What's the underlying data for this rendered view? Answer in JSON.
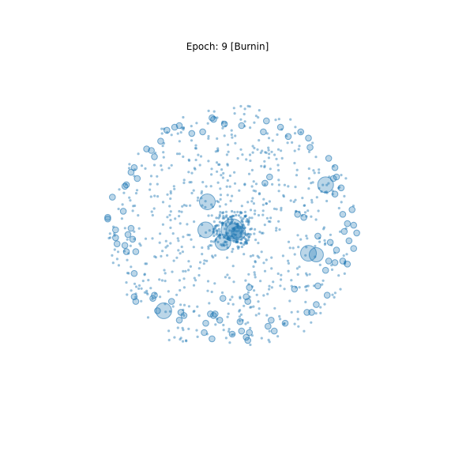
{
  "title": "Epoch: 9 [Burnin]",
  "point_color": "#1f77b4",
  "chart_data": {
    "type": "scatter",
    "title": "Epoch: 9 [Burnin]",
    "axes_visible": false,
    "grid": false,
    "legend": "none",
    "xlim": [
      -1,
      1
    ],
    "ylim": [
      -1,
      1
    ],
    "alpha": 0.3,
    "large_nodes": [
      {
        "x": 0.0,
        "y": 0.0,
        "r": 14
      },
      {
        "x": 0.01,
        "y": -0.01,
        "r": 10
      },
      {
        "x": 0.04,
        "y": -0.02,
        "r": 9
      },
      {
        "x": -0.17,
        "y": 0.0,
        "r": 10
      },
      {
        "x": -0.06,
        "y": -0.08,
        "r": 10
      },
      {
        "x": -0.16,
        "y": 0.18,
        "r": 10
      },
      {
        "x": 0.6,
        "y": 0.29,
        "r": 10
      },
      {
        "x": 0.49,
        "y": -0.15,
        "r": 10
      },
      {
        "x": 0.54,
        "y": -0.16,
        "r": 9
      },
      {
        "x": -0.44,
        "y": -0.52,
        "r": 10
      }
    ],
    "medium_nodes": [
      {
        "x": -0.12,
        "y": 0.71
      },
      {
        "x": 0.06,
        "y": 0.67
      },
      {
        "x": 0.22,
        "y": 0.7
      },
      {
        "x": 0.31,
        "y": 0.66
      },
      {
        "x": 0.44,
        "y": 0.63
      },
      {
        "x": 0.36,
        "y": 0.6
      },
      {
        "x": 0.49,
        "y": 0.59
      },
      {
        "x": 0.5,
        "y": 0.53
      },
      {
        "x": 0.62,
        "y": 0.46
      },
      {
        "x": 0.66,
        "y": 0.4
      },
      {
        "x": 0.67,
        "y": 0.34
      },
      {
        "x": 0.7,
        "y": 0.27
      },
      {
        "x": 0.66,
        "y": 0.23
      },
      {
        "x": 0.77,
        "y": 0.13
      },
      {
        "x": 0.71,
        "y": 0.1
      },
      {
        "x": 0.74,
        "y": 0.04
      },
      {
        "x": 0.78,
        "y": 0.03
      },
      {
        "x": 0.72,
        "y": -0.01
      },
      {
        "x": 0.8,
        "y": -0.02
      },
      {
        "x": 0.75,
        "y": -0.07
      },
      {
        "x": 0.78,
        "y": -0.12
      },
      {
        "x": 0.67,
        "y": -0.13
      },
      {
        "x": 0.63,
        "y": -0.08
      },
      {
        "x": 0.55,
        "y": -0.04
      },
      {
        "x": 0.62,
        "y": -0.2
      },
      {
        "x": 0.66,
        "y": -0.21
      },
      {
        "x": 0.6,
        "y": -0.26
      },
      {
        "x": 0.42,
        "y": 0.1
      },
      {
        "x": 0.46,
        "y": 0.08
      },
      {
        "x": 0.61,
        "y": -0.42
      },
      {
        "x": 0.54,
        "y": -0.48
      },
      {
        "x": 0.51,
        "y": -0.53
      },
      {
        "x": 0.48,
        "y": -0.53
      },
      {
        "x": 0.34,
        "y": -0.6
      },
      {
        "x": 0.25,
        "y": -0.58
      },
      {
        "x": 0.23,
        "y": -0.62
      },
      {
        "x": 0.27,
        "y": -0.65
      },
      {
        "x": 0.11,
        "y": -0.66
      },
      {
        "x": 0.09,
        "y": -0.69
      },
      {
        "x": 0.06,
        "y": -0.65
      },
      {
        "x": 0.1,
        "y": -0.71
      },
      {
        "x": 0.05,
        "y": -0.59
      },
      {
        "x": 0.1,
        "y": -0.46
      },
      {
        "x": 0.09,
        "y": -0.43
      },
      {
        "x": 0.0,
        "y": -0.67
      },
      {
        "x": -0.13,
        "y": -0.7
      },
      {
        "x": -0.18,
        "y": -0.66
      },
      {
        "x": -0.17,
        "y": -0.6
      },
      {
        "x": -0.12,
        "y": -0.55
      },
      {
        "x": -0.11,
        "y": -0.54
      },
      {
        "x": -0.08,
        "y": -0.58
      },
      {
        "x": -0.06,
        "y": -0.44
      },
      {
        "x": -0.34,
        "y": -0.58
      },
      {
        "x": -0.31,
        "y": -0.55
      },
      {
        "x": -0.33,
        "y": -0.53
      },
      {
        "x": -0.39,
        "y": -0.46
      },
      {
        "x": -0.5,
        "y": -0.42
      },
      {
        "x": -0.51,
        "y": -0.44
      },
      {
        "x": -0.48,
        "y": -0.52
      },
      {
        "x": -0.63,
        "y": -0.28
      },
      {
        "x": -0.68,
        "y": -0.14
      },
      {
        "x": -0.69,
        "y": -0.1
      },
      {
        "x": -0.62,
        "y": -0.14
      },
      {
        "x": -0.64,
        "y": -0.06
      },
      {
        "x": -0.74,
        "y": -0.09
      },
      {
        "x": -0.67,
        "y": -0.03
      },
      {
        "x": -0.75,
        "y": -0.05
      },
      {
        "x": -0.65,
        "y": 0.01
      },
      {
        "x": -0.75,
        "y": 0.0
      },
      {
        "x": -0.8,
        "y": 0.08
      },
      {
        "x": -0.7,
        "y": 0.12
      },
      {
        "x": -0.77,
        "y": 0.21
      },
      {
        "x": -0.68,
        "y": 0.29
      },
      {
        "x": -0.69,
        "y": 0.28
      },
      {
        "x": -0.61,
        "y": 0.33
      },
      {
        "x": -0.65,
        "y": 0.37
      },
      {
        "x": -0.5,
        "y": 0.47
      },
      {
        "x": -0.55,
        "y": 0.52
      },
      {
        "x": -0.52,
        "y": 0.51
      },
      {
        "x": -0.46,
        "y": 0.57
      },
      {
        "x": -0.42,
        "y": 0.64
      },
      {
        "x": -0.37,
        "y": 0.66
      },
      {
        "x": -0.34,
        "y": 0.67
      },
      {
        "x": -0.26,
        "y": 0.62
      },
      {
        "x": -0.19,
        "y": 0.63
      },
      {
        "x": -0.13,
        "y": 0.72
      },
      {
        "x": -0.05,
        "y": 0.68
      },
      {
        "x": 0.2,
        "y": 0.63
      },
      {
        "x": 0.21,
        "y": 0.3
      },
      {
        "x": 0.24,
        "y": 0.34
      },
      {
        "x": -0.62,
        "y": -0.46
      },
      {
        "x": -0.14,
        "y": -0.54
      },
      {
        "x": 0.4,
        "y": -0.38
      },
      {
        "x": 0.55,
        "y": -0.36
      },
      {
        "x": 0.71,
        "y": -0.2
      },
      {
        "x": 0.74,
        "y": -0.22
      },
      {
        "x": 0.11,
        "y": -0.37
      },
      {
        "x": -0.63,
        "y": 0.4
      },
      {
        "x": 0.65,
        "y": 0.33
      },
      {
        "x": -0.8,
        "y": 0.07
      },
      {
        "x": -0.63,
        "y": -0.43
      }
    ],
    "small_node_count": 720,
    "small_node_seed": 9,
    "small_node_radius": 1.6
  }
}
